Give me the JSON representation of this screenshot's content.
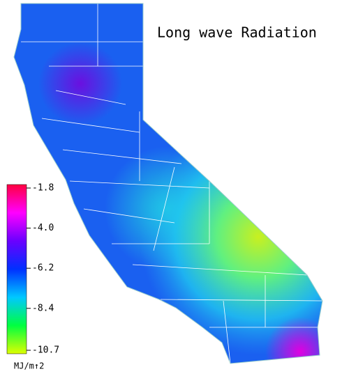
{
  "title": "Long wave Radiation",
  "colorbar": {
    "lim": [
      -10.7,
      -1.8
    ],
    "ticks": [
      -1.8,
      {
        "value": -4,
        "label": "-4.0"
      },
      -6.2,
      -8.4,
      -10.7
    ],
    "unit": "MJ/m↑2",
    "colors": [
      "#ff0040",
      "#ff00ff",
      "#6a00ff",
      "#0030ff",
      "#00c8ff",
      "#00ff40",
      "#ddff00"
    ]
  }
}
